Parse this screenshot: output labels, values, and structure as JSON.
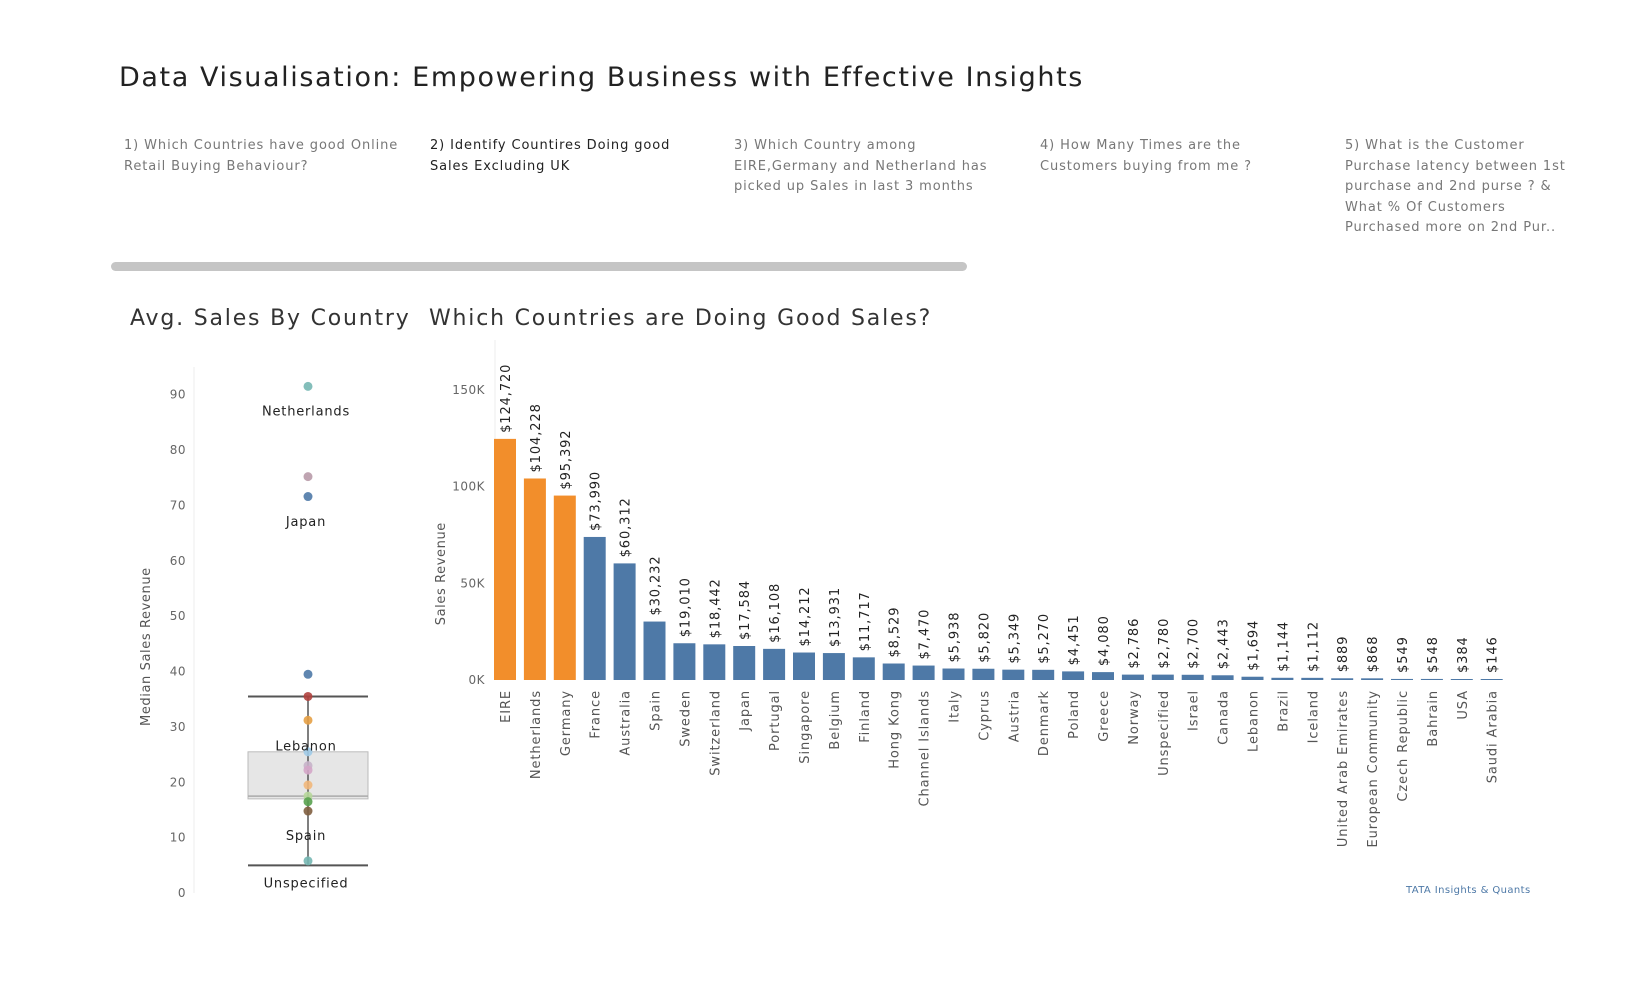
{
  "page": {
    "title": "Data Visualisation: Empowering Business with Effective Insights",
    "credit": "TATA Insights & Quants"
  },
  "story_points": [
    {
      "label": "1) Which Countries have good Online Retail Buying Behaviour?",
      "active": false
    },
    {
      "label": "2) Identify Countires Doing  good Sales Excluding UK",
      "active": true
    },
    {
      "label": "3) Which Country among EIRE,Germany and Netherland has picked up Sales in last 3 months",
      "active": false
    },
    {
      "label": "4) How Many Times are the Customers buying from me ?",
      "active": false
    },
    {
      "label": "5) What is the Customer Purchase latency between 1st purchase and 2nd purse ? & What % Of Customers Purchased more on 2nd Pur..",
      "active": false
    }
  ],
  "colors": {
    "orange": "#f28e2b",
    "blue": "#4e79a7",
    "box_fill": "#e6e6e6",
    "whisker": "#555555"
  },
  "chart_data": [
    {
      "type": "scatter",
      "title": "Avg. Sales By Country",
      "ylabel": "Median Sales Revenue",
      "ylim": [
        0,
        95
      ],
      "yticks": [
        0,
        10,
        20,
        30,
        40,
        50,
        60,
        70,
        80,
        90
      ],
      "points": [
        {
          "y": 91.5,
          "color": "#76b7b2"
        },
        {
          "y": 75.2,
          "color": "#b89aa8"
        },
        {
          "y": 71.6,
          "color": "#4e79a7"
        },
        {
          "y": 39.5,
          "color": "#4e79a7"
        },
        {
          "y": 35.5,
          "color": "#b0413e"
        },
        {
          "y": 31.2,
          "color": "#e6a045"
        },
        {
          "y": 25.5,
          "color": "#a0cbe8"
        },
        {
          "y": 23.0,
          "color": "#c7b2c9"
        },
        {
          "y": 22.2,
          "color": "#d4a6c8"
        },
        {
          "y": 19.5,
          "color": "#f1b77a"
        },
        {
          "y": 17.5,
          "color": "#b7d79b"
        },
        {
          "y": 16.5,
          "color": "#59a14f"
        },
        {
          "y": 14.8,
          "color": "#7f5e3f"
        },
        {
          "y": 5.8,
          "color": "#76b7b2"
        }
      ],
      "box": {
        "q1": 17.0,
        "median": 17.5,
        "q3": 25.5,
        "whisker_low": 5.0,
        "whisker_high": 35.5
      },
      "annotations": [
        {
          "label": "Netherlands",
          "y": 87
        },
        {
          "label": "Japan",
          "y": 67
        },
        {
          "label": "Lebanon",
          "y": 26.5
        },
        {
          "label": "Spain",
          "y": 10.3
        },
        {
          "label": "Unspecified",
          "y": 1.7
        }
      ]
    },
    {
      "type": "bar",
      "title": "Which Countries are Doing Good Sales?",
      "ylabel": "Sales Revenue",
      "ylim": [
        0,
        165000
      ],
      "yticks": [
        0,
        50000,
        100000,
        150000
      ],
      "ytick_labels": [
        "0K",
        "50K",
        "100K",
        "150K"
      ],
      "categories": [
        "EIRE",
        "Netherlands",
        "Germany",
        "France",
        "Australia",
        "Spain",
        "Sweden",
        "Switzerland",
        "Japan",
        "Portugal",
        "Singapore",
        "Belgium",
        "Finland",
        "Hong Kong",
        "Channel Islands",
        "Italy",
        "Cyprus",
        "Austria",
        "Denmark",
        "Poland",
        "Greece",
        "Norway",
        "Unspecified",
        "Israel",
        "Canada",
        "Lebanon",
        "Brazil",
        "Iceland",
        "United Arab Emirates",
        "European Community",
        "Czech Republic",
        "Bahrain",
        "USA",
        "Saudi Arabia"
      ],
      "values": [
        124720,
        104228,
        95392,
        73990,
        60312,
        30232,
        19010,
        18442,
        17584,
        16108,
        14212,
        13931,
        11717,
        8529,
        7470,
        5938,
        5820,
        5349,
        5270,
        4451,
        4080,
        2786,
        2780,
        2700,
        2443,
        1694,
        1144,
        1112,
        889,
        868,
        549,
        548,
        384,
        146
      ],
      "labels": [
        "$124,720",
        "$104,228",
        "$95,392",
        "$73,990",
        "$60,312",
        "$30,232",
        "$19,010",
        "$18,442",
        "$17,584",
        "$16,108",
        "$14,212",
        "$13,931",
        "$11,717",
        "$8,529",
        "$7,470",
        "$5,938",
        "$5,820",
        "$5,349",
        "$5,270",
        "$4,451",
        "$4,080",
        "$2,786",
        "$2,780",
        "$2,700",
        "$2,443",
        "$1,694",
        "$1,144",
        "$1,112",
        "$889",
        "$868",
        "$549",
        "$548",
        "$384",
        "$146"
      ],
      "highlight_count": 3
    }
  ]
}
